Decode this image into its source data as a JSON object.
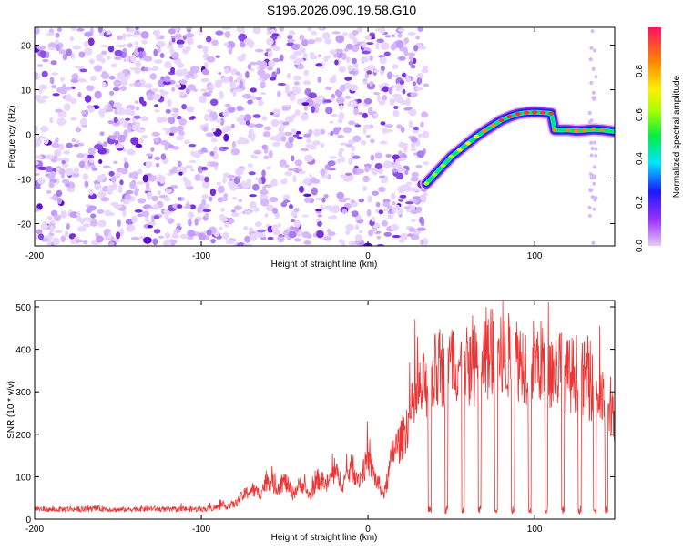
{
  "chart_data": [
    {
      "type": "heatmap",
      "title": "S196.2026.090.19.58.G10",
      "xlabel": "Height of straight line (km)",
      "ylabel": "Frequency (Hz)",
      "xlim": [
        -200,
        148
      ],
      "ylim": [
        -25,
        24
      ],
      "xticks": [
        -200,
        -100,
        0,
        100
      ],
      "yticks": [
        -20,
        -10,
        0,
        10,
        20
      ],
      "colorbar": {
        "label": "Normalized spectral amplitude",
        "range": [
          0,
          1
        ],
        "ticks": [
          0.0,
          0.2,
          0.4,
          0.6,
          0.8
        ]
      },
      "noise_region_x": [
        -200,
        35
      ],
      "signal_track": [
        {
          "x": 35,
          "y": -11
        },
        {
          "x": 40,
          "y": -9
        },
        {
          "x": 45,
          "y": -7
        },
        {
          "x": 50,
          "y": -5
        },
        {
          "x": 55,
          "y": -3.5
        },
        {
          "x": 60,
          "y": -2
        },
        {
          "x": 65,
          "y": -0.5
        },
        {
          "x": 70,
          "y": 0.8
        },
        {
          "x": 75,
          "y": 2
        },
        {
          "x": 80,
          "y": 3.2
        },
        {
          "x": 85,
          "y": 4
        },
        {
          "x": 90,
          "y": 4.6
        },
        {
          "x": 95,
          "y": 4.9
        },
        {
          "x": 100,
          "y": 5
        },
        {
          "x": 105,
          "y": 4.9
        },
        {
          "x": 110,
          "y": 4.7
        },
        {
          "x": 112,
          "y": 1
        },
        {
          "x": 120,
          "y": 1
        },
        {
          "x": 125,
          "y": 0.8
        },
        {
          "x": 130,
          "y": 0.9
        },
        {
          "x": 135,
          "y": 1.1
        },
        {
          "x": 140,
          "y": 1
        },
        {
          "x": 148,
          "y": 0.6
        }
      ]
    },
    {
      "type": "line",
      "title": "",
      "xlabel": "Height of straight line (km)",
      "ylabel": "SNR (10 * v/v)",
      "xlim": [
        -200,
        148
      ],
      "ylim": [
        0,
        515
      ],
      "xticks": [
        -200,
        -100,
        0,
        100
      ],
      "yticks": [
        0,
        100,
        200,
        300,
        400,
        500
      ],
      "color": "#ee3333",
      "series": [
        {
          "name": "SNR",
          "x": [
            -200,
            -190,
            -180,
            -170,
            -160,
            -150,
            -140,
            -130,
            -120,
            -110,
            -100,
            -90,
            -80,
            -75,
            -70,
            -65,
            -60,
            -55,
            -50,
            -45,
            -40,
            -35,
            -30,
            -25,
            -20,
            -15,
            -10,
            -5,
            0,
            5,
            10,
            15,
            20,
            25,
            30,
            35,
            40,
            45,
            50,
            55,
            60,
            65,
            70,
            75,
            80,
            85,
            90,
            95,
            100,
            105,
            110,
            115,
            120,
            125,
            130,
            135,
            140,
            145,
            148
          ],
          "values": [
            25,
            22,
            24,
            23,
            25,
            22,
            24,
            25,
            22,
            24,
            23,
            28,
            35,
            55,
            70,
            60,
            95,
            75,
            90,
            60,
            85,
            55,
            95,
            80,
            110,
            85,
            120,
            95,
            140,
            90,
            60,
            160,
            185,
            240,
            290,
            320,
            345,
            355,
            360,
            370,
            355,
            365,
            375,
            380,
            375,
            385,
            380,
            370,
            375,
            370,
            345,
            360,
            335,
            345,
            330,
            310,
            280,
            250,
            220
          ]
        }
      ],
      "dropouts_x": [
        37,
        47,
        57,
        67,
        77,
        87,
        97,
        107,
        117,
        127,
        136,
        143
      ]
    }
  ]
}
